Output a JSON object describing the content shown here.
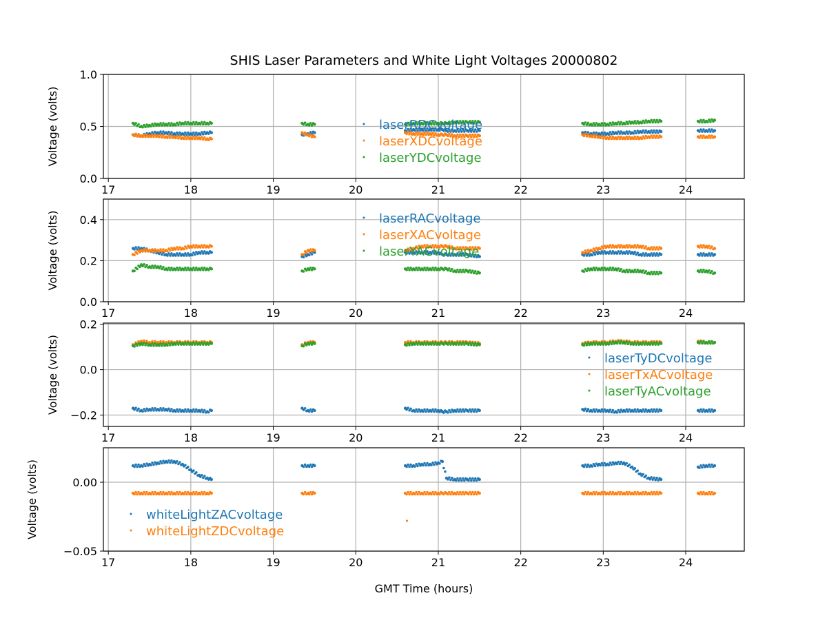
{
  "chart_data": {
    "type": "scatter",
    "title": "SHIS Laser Parameters and White Light Voltages 20000802",
    "xlabel": "GMT Time (hours)",
    "xlim": [
      16.94,
      24.71
    ],
    "x_ticks": [
      "17",
      "18",
      "19",
      "20",
      "21",
      "22",
      "23",
      "24"
    ],
    "x_tick_values": [
      17,
      18,
      19,
      20,
      21,
      22,
      23,
      24
    ],
    "grid": true,
    "colors": [
      "#1f77b4",
      "#ff7f0e",
      "#2ca02c"
    ],
    "segments_x": [
      [
        17.3,
        17.4,
        17.5,
        17.6,
        17.7,
        17.8,
        17.9,
        18.0,
        18.1,
        18.2,
        18.25
      ],
      [
        19.35,
        19.42,
        19.5
      ],
      [
        20.6,
        20.7,
        20.8,
        20.9,
        21.0,
        21.05,
        21.1,
        21.2,
        21.35,
        21.5
      ],
      [
        22.75,
        22.85,
        22.95,
        23.05,
        23.15,
        23.25,
        23.35,
        23.45,
        23.55,
        23.7
      ],
      [
        24.15,
        24.25,
        24.35
      ]
    ],
    "panels": [
      {
        "ylabel": "Voltage (volts)",
        "ylim": [
          0,
          1.0
        ],
        "y_ticks": [
          "0.0",
          "0.5",
          "1.0"
        ],
        "y_tick_values": [
          0,
          0.5,
          1.0
        ],
        "legend": "center",
        "series": [
          {
            "name": "laserRDCvoltage",
            "values": [
              [
                0.42,
                0.41,
                0.43,
                0.44,
                0.44,
                0.43,
                0.43,
                0.43,
                0.43,
                0.44,
                0.44
              ],
              [
                0.42,
                0.43,
                0.44
              ],
              [
                0.46,
                0.47,
                0.47,
                0.47,
                0.47,
                0.47,
                0.46,
                0.46,
                0.46,
                0.46
              ],
              [
                0.44,
                0.43,
                0.43,
                0.43,
                0.44,
                0.44,
                0.44,
                0.45,
                0.45,
                0.45
              ],
              [
                0.46,
                0.46,
                0.46
              ]
            ]
          },
          {
            "name": "laserXDCvoltage",
            "values": [
              [
                0.42,
                0.41,
                0.41,
                0.41,
                0.4,
                0.4,
                0.39,
                0.39,
                0.39,
                0.38,
                0.38
              ],
              [
                0.44,
                0.42,
                0.4
              ],
              [
                0.44,
                0.43,
                0.43,
                0.43,
                0.42,
                0.42,
                0.42,
                0.41,
                0.41,
                0.41
              ],
              [
                0.42,
                0.41,
                0.4,
                0.39,
                0.39,
                0.39,
                0.39,
                0.39,
                0.4,
                0.4
              ],
              [
                0.4,
                0.4,
                0.4
              ]
            ]
          },
          {
            "name": "laserYDCvoltage",
            "values": [
              [
                0.53,
                0.5,
                0.51,
                0.52,
                0.52,
                0.52,
                0.53,
                0.53,
                0.53,
                0.53,
                0.53
              ],
              [
                0.53,
                0.52,
                0.52
              ],
              [
                0.52,
                0.53,
                0.53,
                0.53,
                0.53,
                0.53,
                0.53,
                0.54,
                0.54,
                0.54
              ],
              [
                0.53,
                0.52,
                0.52,
                0.52,
                0.53,
                0.53,
                0.54,
                0.54,
                0.55,
                0.55
              ],
              [
                0.55,
                0.55,
                0.56
              ]
            ]
          }
        ]
      },
      {
        "ylabel": "Voltage (volts)",
        "ylim": [
          0,
          0.5
        ],
        "y_ticks": [
          "0.0",
          "0.2",
          "0.4"
        ],
        "y_tick_values": [
          0,
          0.2,
          0.4
        ],
        "legend": "upper center",
        "series": [
          {
            "name": "laserRACvoltage",
            "values": [
              [
                0.26,
                0.26,
                0.25,
                0.24,
                0.23,
                0.23,
                0.23,
                0.23,
                0.24,
                0.24,
                0.24
              ],
              [
                0.22,
                0.23,
                0.24
              ],
              [
                0.24,
                0.24,
                0.24,
                0.24,
                0.24,
                0.23,
                0.23,
                0.23,
                0.23,
                0.22
              ],
              [
                0.23,
                0.23,
                0.24,
                0.24,
                0.24,
                0.24,
                0.24,
                0.23,
                0.23,
                0.23
              ],
              [
                0.23,
                0.23,
                0.23
              ]
            ]
          },
          {
            "name": "laserXACvoltage",
            "values": [
              [
                0.23,
                0.25,
                0.25,
                0.25,
                0.25,
                0.26,
                0.26,
                0.27,
                0.27,
                0.27,
                0.27
              ],
              [
                0.23,
                0.25,
                0.25
              ],
              [
                0.25,
                0.26,
                0.27,
                0.27,
                0.27,
                0.27,
                0.27,
                0.26,
                0.26,
                0.26
              ],
              [
                0.24,
                0.25,
                0.26,
                0.27,
                0.27,
                0.27,
                0.27,
                0.27,
                0.26,
                0.26
              ],
              [
                0.27,
                0.27,
                0.26
              ]
            ]
          },
          {
            "name": "laserYACvoltage",
            "values": [
              [
                0.15,
                0.18,
                0.17,
                0.17,
                0.16,
                0.16,
                0.16,
                0.16,
                0.16,
                0.16,
                0.16
              ],
              [
                0.15,
                0.16,
                0.16
              ],
              [
                0.16,
                0.16,
                0.16,
                0.16,
                0.16,
                0.16,
                0.16,
                0.15,
                0.15,
                0.14
              ],
              [
                0.15,
                0.16,
                0.16,
                0.16,
                0.16,
                0.15,
                0.15,
                0.15,
                0.14,
                0.14
              ],
              [
                0.15,
                0.15,
                0.14
              ]
            ]
          }
        ]
      },
      {
        "ylabel": "Voltage (volts)",
        "ylim": [
          -0.25,
          0.205
        ],
        "y_ticks": [
          "−0.2",
          "0.0",
          "0.2"
        ],
        "y_tick_values": [
          -0.2,
          0,
          0.2
        ],
        "legend": "center right",
        "series": [
          {
            "name": "laserTyDCvoltage",
            "values": [
              [
                -0.17,
                -0.18,
                -0.175,
                -0.175,
                -0.175,
                -0.18,
                -0.18,
                -0.18,
                -0.18,
                -0.185,
                -0.18
              ],
              [
                -0.17,
                -0.18,
                -0.18
              ],
              [
                -0.17,
                -0.18,
                -0.18,
                -0.18,
                -0.18,
                -0.185,
                -0.185,
                -0.18,
                -0.18,
                -0.18
              ],
              [
                -0.175,
                -0.18,
                -0.18,
                -0.18,
                -0.185,
                -0.18,
                -0.18,
                -0.18,
                -0.18,
                -0.18
              ],
              [
                -0.18,
                -0.18,
                -0.18
              ]
            ]
          },
          {
            "name": "laserTxACvoltage",
            "values": [
              [
                0.11,
                0.125,
                0.12,
                0.12,
                0.12,
                0.12,
                0.12,
                0.12,
                0.12,
                0.12,
                0.12
              ],
              [
                0.11,
                0.12,
                0.12
              ],
              [
                0.12,
                0.12,
                0.12,
                0.12,
                0.12,
                0.12,
                0.12,
                0.12,
                0.12,
                0.115
              ],
              [
                0.115,
                0.12,
                0.12,
                0.12,
                0.125,
                0.125,
                0.12,
                0.12,
                0.12,
                0.12
              ],
              [
                0.125,
                0.12,
                0.12
              ]
            ]
          },
          {
            "name": "laserTyACvoltage",
            "values": [
              [
                0.105,
                0.115,
                0.11,
                0.11,
                0.11,
                0.115,
                0.115,
                0.115,
                0.115,
                0.115,
                0.115
              ],
              [
                0.105,
                0.115,
                0.115
              ],
              [
                0.11,
                0.115,
                0.115,
                0.115,
                0.115,
                0.115,
                0.115,
                0.115,
                0.115,
                0.11
              ],
              [
                0.11,
                0.115,
                0.115,
                0.115,
                0.12,
                0.12,
                0.115,
                0.115,
                0.115,
                0.115
              ],
              [
                0.12,
                0.12,
                0.12
              ]
            ]
          }
        ]
      },
      {
        "ylabel": "Voltage (volts)",
        "ylim": [
          -0.05,
          0.025
        ],
        "y_ticks": [
          "−0.05",
          "0.00"
        ],
        "y_tick_values": [
          -0.05,
          0
        ],
        "legend": "lower left",
        "series": [
          {
            "name": "whiteLightZACvoltage",
            "values": [
              [
                0.012,
                0.012,
                0.013,
                0.014,
                0.015,
                0.015,
                0.013,
                0.009,
                0.005,
                0.003,
                0.002
              ],
              [
                0.012,
                0.012,
                0.012
              ],
              [
                0.012,
                0.012,
                0.013,
                0.013,
                0.014,
                0.015,
                0.003,
                0.002,
                0.002,
                0.002
              ],
              [
                0.012,
                0.012,
                0.013,
                0.013,
                0.014,
                0.014,
                0.011,
                0.006,
                0.003,
                0.002
              ],
              [
                0.011,
                0.012,
                0.012
              ]
            ]
          },
          {
            "name": "whiteLightZDCvoltage",
            "values": [
              [
                -0.008,
                -0.008,
                -0.008,
                -0.008,
                -0.008,
                -0.008,
                -0.008,
                -0.008,
                -0.008,
                -0.008,
                -0.008
              ],
              [
                -0.008,
                -0.008,
                -0.008
              ],
              [
                -0.008,
                -0.008,
                -0.008,
                -0.008,
                -0.008,
                -0.008,
                -0.008,
                -0.008,
                -0.008,
                -0.008
              ],
              [
                -0.008,
                -0.008,
                -0.008,
                -0.008,
                -0.008,
                -0.008,
                -0.008,
                -0.008,
                -0.008,
                -0.008
              ],
              [
                -0.008,
                -0.008,
                -0.008
              ]
            ],
            "extra_points": [
              [
                20.62,
                -0.028
              ]
            ]
          }
        ]
      }
    ]
  }
}
